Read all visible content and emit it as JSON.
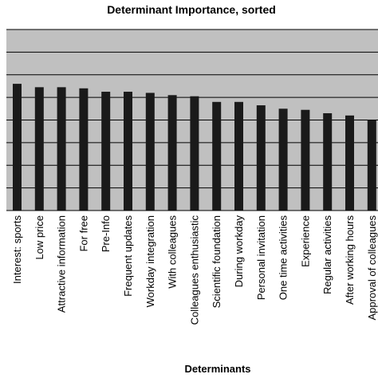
{
  "chart_data": {
    "type": "bar",
    "title": "Determinant Importance, sorted",
    "xlabel": "Determinants",
    "ylabel": "",
    "ylim": [
      0,
      8
    ],
    "grid": true,
    "categories": [
      "Interest: sports",
      "Low price",
      "Attractive information",
      "For free",
      "Pre-Info",
      "Frequent updates",
      "Workday integration",
      "With colleagues",
      "Colleagues enthusiastic",
      "Scientific foundation",
      "During workday",
      "Personal invitation",
      "One time activities",
      "Experience",
      "Regular activities",
      "After working hours",
      "Approval of colleagues"
    ],
    "values": [
      5.6,
      5.45,
      5.45,
      5.4,
      5.25,
      5.25,
      5.2,
      5.1,
      5.05,
      4.8,
      4.8,
      4.65,
      4.5,
      4.45,
      4.3,
      4.2,
      4.0
    ],
    "colors": {
      "plot_background": "#c0c0c0",
      "bar": "#1a1a1a",
      "grid": "#000000"
    }
  }
}
